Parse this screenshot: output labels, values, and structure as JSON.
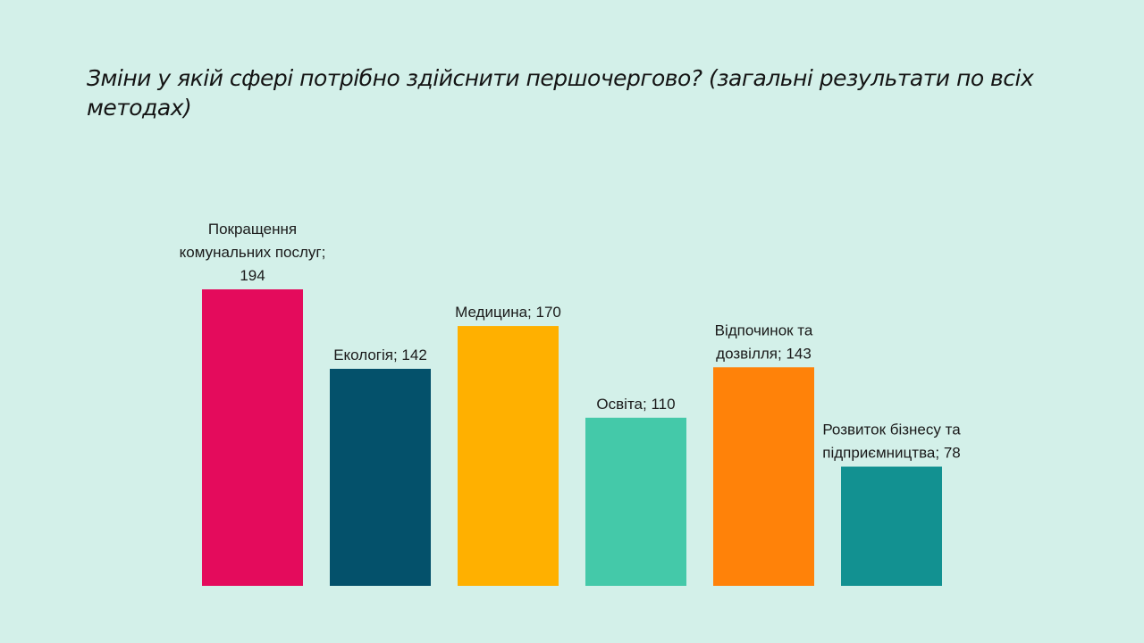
{
  "slide": {
    "title": "Зміни у якій сфері потрібно здійснити першочергово? (загальні результати по всіх методах)"
  },
  "chart_data": {
    "type": "bar",
    "title": "Зміни у якій сфері потрібно здійснити першочергово? (загальні результати по всіх методах)",
    "categories": [
      "Покращення комунальних послуг",
      "Екологія",
      "Медицина",
      "Освіта",
      "Відпочинок та дозвілля",
      "Розвиток бізнесу та підприємництва"
    ],
    "values": [
      194,
      142,
      170,
      110,
      143,
      78
    ],
    "colors": [
      "#e40b5c",
      "#04516b",
      "#ffb000",
      "#44c9a9",
      "#ff8209",
      "#129191"
    ],
    "data_labels": [
      [
        "Покращення",
        "комунальних послуг;",
        "194"
      ],
      [
        "Екологія; 142"
      ],
      [
        "Медицина; 170"
      ],
      [
        "Освіта; 110"
      ],
      [
        "Відпочинок та",
        "дозвілля; 143"
      ],
      [
        "Розвиток бізнесу та",
        "підприємництва; 78"
      ]
    ],
    "xlabel": "",
    "ylabel": "",
    "ylim": [
      0,
      194
    ],
    "grid": false,
    "legend": "none"
  }
}
